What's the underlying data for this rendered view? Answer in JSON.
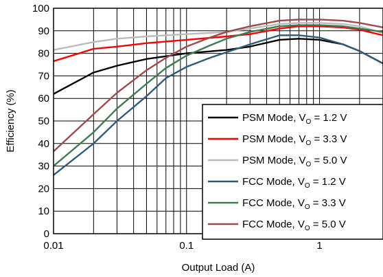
{
  "chart_data": {
    "type": "line",
    "xlabel": "Output Load (A)",
    "ylabel": "Efficiency (%)",
    "x_scale": "log",
    "xlim": [
      0.01,
      3
    ],
    "ylim": [
      0,
      100
    ],
    "x_ticks": [
      0.01,
      0.1,
      1
    ],
    "x_tick_labels": [
      "0.01",
      "0.1",
      "1"
    ],
    "y_ticks": [
      0,
      10,
      20,
      30,
      40,
      50,
      60,
      70,
      80,
      90,
      100
    ],
    "grid": true,
    "legend_position": "bottom-right",
    "series": [
      {
        "name": "PSM Mode, VO = 1.2 V",
        "label_main": "PSM Mode, V",
        "label_sub": "O",
        "label_tail": " = 1.2 V",
        "color": "#000000",
        "points": [
          [
            0.01,
            62
          ],
          [
            0.02,
            71.5
          ],
          [
            0.03,
            74.5
          ],
          [
            0.05,
            77.5
          ],
          [
            0.1,
            80
          ],
          [
            0.2,
            81.5
          ],
          [
            0.3,
            83
          ],
          [
            0.5,
            86
          ],
          [
            0.7,
            86.5
          ],
          [
            1.0,
            86
          ],
          [
            1.5,
            84
          ],
          [
            2.0,
            81
          ],
          [
            3.0,
            75.5
          ]
        ]
      },
      {
        "name": "PSM Mode, VO = 3.3 V",
        "label_main": "PSM Mode, V",
        "label_sub": "O",
        "label_tail": " = 3.3 V",
        "color": "#ff0000",
        "points": [
          [
            0.01,
            76.5
          ],
          [
            0.02,
            82
          ],
          [
            0.03,
            83
          ],
          [
            0.05,
            84.5
          ],
          [
            0.1,
            86
          ],
          [
            0.2,
            87.5
          ],
          [
            0.3,
            88.5
          ],
          [
            0.5,
            91
          ],
          [
            0.7,
            92
          ],
          [
            1.0,
            92
          ],
          [
            1.5,
            91.5
          ],
          [
            2.0,
            90.5
          ],
          [
            3.0,
            88
          ]
        ]
      },
      {
        "name": "PSM Mode, VO = 5.0 V",
        "label_main": "PSM Mode, V",
        "label_sub": "O",
        "label_tail": " = 5.0 V",
        "color": "#bbbbbb",
        "points": [
          [
            0.01,
            81.5
          ],
          [
            0.02,
            85
          ],
          [
            0.03,
            86.5
          ],
          [
            0.05,
            87.5
          ],
          [
            0.1,
            88.5
          ],
          [
            0.2,
            89.5
          ],
          [
            0.3,
            91
          ],
          [
            0.5,
            93
          ],
          [
            0.7,
            93.5
          ],
          [
            1.0,
            93.5
          ],
          [
            1.5,
            93
          ],
          [
            2.0,
            92
          ],
          [
            3.0,
            89
          ]
        ]
      },
      {
        "name": "FCC Mode, VO = 1.2 V",
        "label_main": "FCC Mode, V",
        "label_sub": "O",
        "label_tail": " = 1.2 V",
        "color": "#2e5a7a",
        "points": [
          [
            0.01,
            26
          ],
          [
            0.02,
            40
          ],
          [
            0.03,
            50
          ],
          [
            0.05,
            61
          ],
          [
            0.07,
            69
          ],
          [
            0.1,
            74
          ],
          [
            0.15,
            78
          ],
          [
            0.2,
            80.5
          ],
          [
            0.3,
            84
          ],
          [
            0.5,
            88
          ],
          [
            0.7,
            88
          ],
          [
            1.0,
            87
          ],
          [
            1.5,
            84
          ],
          [
            2.0,
            81
          ],
          [
            3.0,
            75.5
          ]
        ]
      },
      {
        "name": "FCC Mode, VO = 3.3 V",
        "label_main": "FCC Mode, V",
        "label_sub": "O",
        "label_tail": " = 3.3 V",
        "color": "#3e7a52",
        "points": [
          [
            0.01,
            30
          ],
          [
            0.02,
            45
          ],
          [
            0.03,
            55.5
          ],
          [
            0.05,
            66.5
          ],
          [
            0.07,
            73.5
          ],
          [
            0.1,
            79
          ],
          [
            0.15,
            83.5
          ],
          [
            0.2,
            86.5
          ],
          [
            0.3,
            89.5
          ],
          [
            0.5,
            92
          ],
          [
            0.7,
            92.5
          ],
          [
            1.0,
            92.5
          ],
          [
            1.5,
            92
          ],
          [
            2.0,
            91
          ],
          [
            3.0,
            89.5
          ]
        ]
      },
      {
        "name": "FCC Mode, VO = 5.0 V",
        "label_main": "FCC Mode, V",
        "label_sub": "O",
        "label_tail": " = 5.0 V",
        "color": "#9e4a4a",
        "points": [
          [
            0.01,
            36.5
          ],
          [
            0.02,
            53
          ],
          [
            0.03,
            62.5
          ],
          [
            0.05,
            72.5
          ],
          [
            0.07,
            78
          ],
          [
            0.1,
            83
          ],
          [
            0.15,
            87
          ],
          [
            0.2,
            89.5
          ],
          [
            0.3,
            92
          ],
          [
            0.5,
            94.5
          ],
          [
            0.7,
            95
          ],
          [
            1.0,
            95
          ],
          [
            1.5,
            94.5
          ],
          [
            2.0,
            93.5
          ],
          [
            3.0,
            91.5
          ]
        ]
      }
    ]
  }
}
